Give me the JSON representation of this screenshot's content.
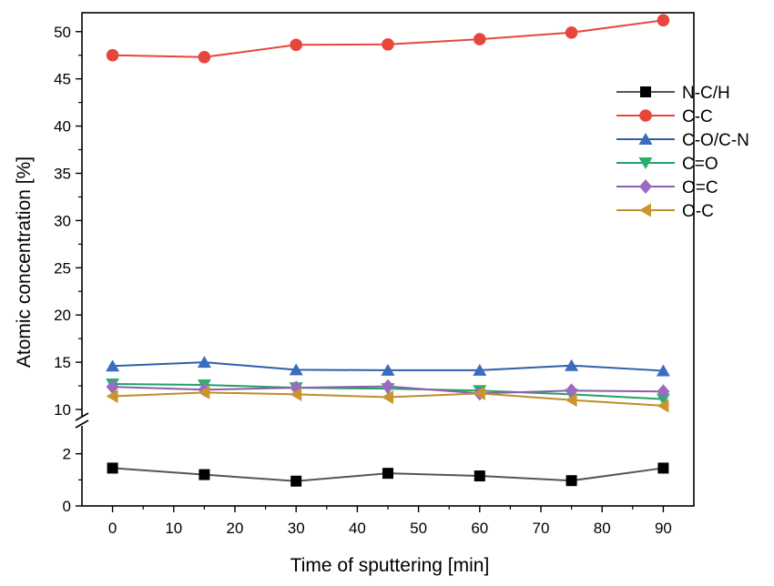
{
  "chart_data": {
    "type": "line",
    "xlabel": "Time of sputtering [min]",
    "ylabel": "Atomic concentration [%]",
    "x": [
      0,
      15,
      30,
      45,
      60,
      75,
      90
    ],
    "xlim": [
      -5,
      95
    ],
    "xticks": [
      0,
      10,
      20,
      30,
      40,
      50,
      60,
      70,
      80,
      90
    ],
    "y_axis_break": {
      "lower_range": [
        0,
        3
      ],
      "upper_range": [
        10,
        52
      ],
      "lower_ticks": [
        0,
        2
      ],
      "upper_ticks": [
        10,
        15,
        20,
        25,
        30,
        35,
        40,
        45,
        50
      ]
    },
    "legend_position": "top-right",
    "grid": false,
    "series": [
      {
        "name": "N-C/H",
        "color": "#555555",
        "marker": "square",
        "marker_color": "#000000",
        "values": [
          1.45,
          1.2,
          0.95,
          1.25,
          1.15,
          0.97,
          1.45
        ]
      },
      {
        "name": "C-C",
        "color": "#e8453c",
        "marker": "circle",
        "marker_color": "#e8453c",
        "values": [
          47.5,
          47.3,
          48.6,
          48.65,
          49.2,
          49.9,
          51.2
        ]
      },
      {
        "name": "C-O/C-N",
        "color": "#2f5fa8",
        "marker": "triangle-up",
        "marker_color": "#3a6cc0",
        "values": [
          14.6,
          15.0,
          14.2,
          14.15,
          14.15,
          14.65,
          14.1
        ]
      },
      {
        "name": "C=O",
        "color": "#23a06a",
        "marker": "triangle-down",
        "marker_color": "#2ab06a",
        "values": [
          12.7,
          12.6,
          12.3,
          12.2,
          12.0,
          11.6,
          11.1
        ]
      },
      {
        "name": "O=C",
        "color": "#8a5fa8",
        "marker": "diamond",
        "marker_color": "#9a6cc0",
        "values": [
          12.4,
          12.1,
          12.3,
          12.45,
          11.7,
          12.0,
          11.9
        ]
      },
      {
        "name": "O-C",
        "color": "#c08d2a",
        "marker": "triangle-left",
        "marker_color": "#c9952f",
        "values": [
          11.4,
          11.8,
          11.6,
          11.3,
          11.7,
          11.0,
          10.4
        ]
      }
    ]
  }
}
